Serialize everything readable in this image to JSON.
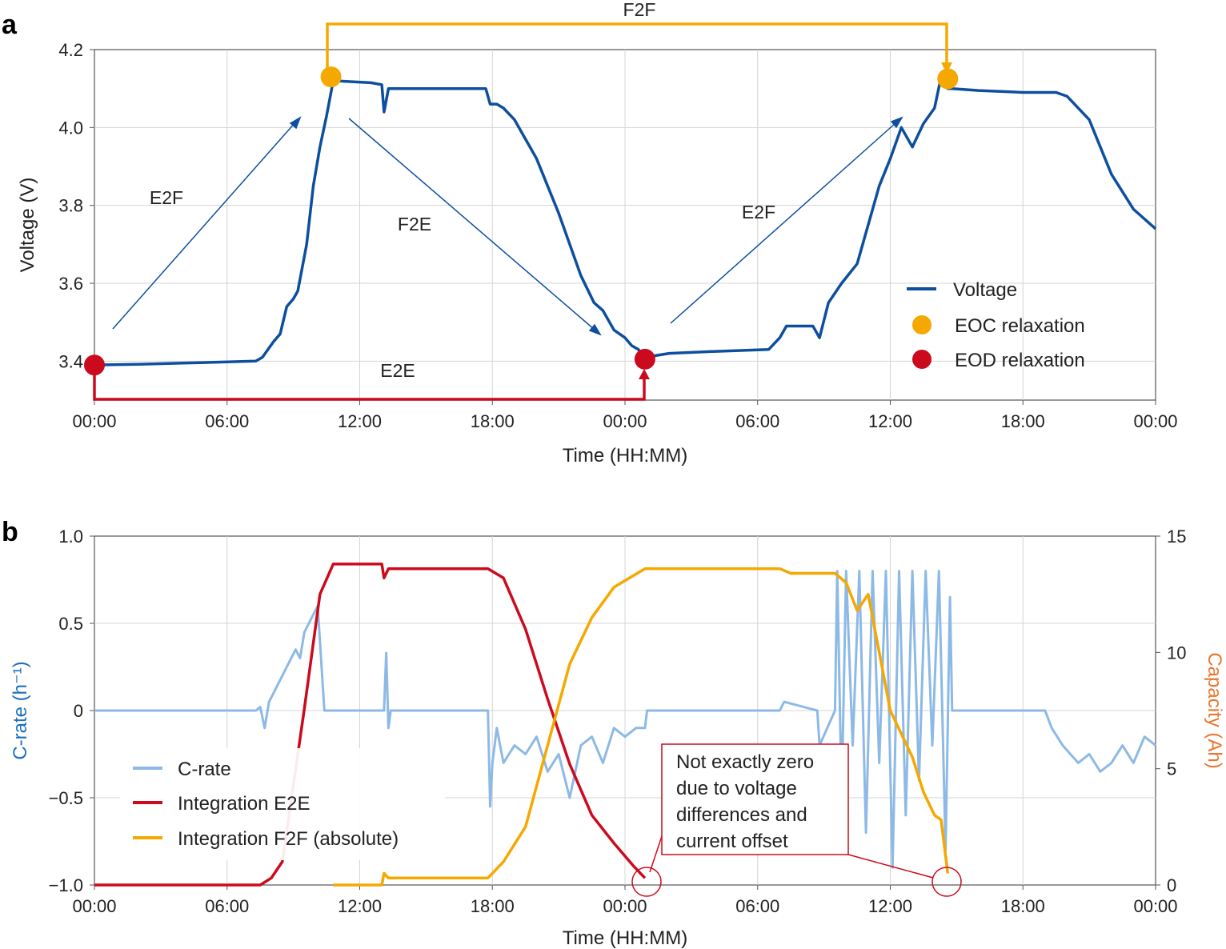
{
  "chart_data": [
    {
      "panel": "a",
      "type": "line",
      "xlabel": "Time (HH:MM)",
      "ylabel": "Voltage (V)",
      "x_ticks": [
        "00:00",
        "06:00",
        "12:00",
        "18:00",
        "00:00",
        "06:00",
        "12:00",
        "18:00",
        "00:00"
      ],
      "xlim_hours": [
        0,
        48
      ],
      "ylim": [
        3.3,
        4.2
      ],
      "y_ticks": [
        "3.4",
        "3.6",
        "3.8",
        "4.0",
        "4.2"
      ],
      "grid": true,
      "legend_position": "bottom-right",
      "series": [
        {
          "name": "Voltage",
          "color": "#0d4f9e",
          "x": [
            0,
            2,
            4,
            7.3,
            7.6,
            8.1,
            8.4,
            8.7,
            9.0,
            9.2,
            9.6,
            9.9,
            10.2,
            10.5,
            10.8,
            12.5,
            13.0,
            13.1,
            13.3,
            15.0,
            17.7,
            17.9,
            18.2,
            18.5,
            19.0,
            20.0,
            21.0,
            22.0,
            22.6,
            23.0,
            23.5,
            24.0,
            24.3,
            24.6,
            24.9,
            26.0,
            28.0,
            30.5,
            31.0,
            31.3,
            32.5,
            32.8,
            33.2,
            33.8,
            34.5,
            35.0,
            35.5,
            36.0,
            36.5,
            37.0,
            37.5,
            38.0,
            38.3,
            38.6,
            38.8,
            40.0,
            42.0,
            43.5,
            44.0,
            45.0,
            46.0,
            47.0,
            48.0
          ],
          "y": [
            3.39,
            3.392,
            3.395,
            3.4,
            3.41,
            3.45,
            3.47,
            3.54,
            3.56,
            3.58,
            3.7,
            3.85,
            3.95,
            4.03,
            4.12,
            4.115,
            4.11,
            4.04,
            4.1,
            4.1,
            4.1,
            4.06,
            4.06,
            4.05,
            4.02,
            3.92,
            3.78,
            3.62,
            3.55,
            3.53,
            3.48,
            3.46,
            3.44,
            3.43,
            3.41,
            3.42,
            3.425,
            3.43,
            3.46,
            3.49,
            3.49,
            3.46,
            3.55,
            3.6,
            3.65,
            3.75,
            3.85,
            3.92,
            4.0,
            3.95,
            4.01,
            4.05,
            4.13,
            4.1,
            4.1,
            4.095,
            4.09,
            4.09,
            4.08,
            4.02,
            3.88,
            3.79,
            3.74
          ]
        }
      ],
      "markers": [
        {
          "name": "EOC relaxation",
          "color": "#f5a800",
          "points": [
            [
              10.7,
              4.13
            ],
            [
              38.6,
              4.125
            ]
          ]
        },
        {
          "name": "EOD relaxation",
          "color": "#cc0a1e",
          "points": [
            [
              0,
              3.39
            ],
            [
              24.9,
              3.405
            ]
          ]
        }
      ],
      "annotations": {
        "e2f_1": "E2F",
        "f2e": "F2E",
        "e2f_2": "E2F",
        "e2e": "E2E",
        "f2f": "F2F"
      }
    },
    {
      "panel": "b",
      "type": "line",
      "xlabel": "Time (HH:MM)",
      "ylabel": "C-rate (h⁻¹)",
      "ylabel_right": "Capacity (Ah)",
      "x_ticks": [
        "00:00",
        "06:00",
        "12:00",
        "18:00",
        "00:00",
        "06:00",
        "12:00",
        "18:00",
        "00:00"
      ],
      "xlim_hours": [
        0,
        48
      ],
      "ylim": [
        -1.0,
        1.0
      ],
      "y_ticks": [
        "−1.0",
        "−0.5",
        "0",
        "0.5",
        "1.0"
      ],
      "ylim_right": [
        0,
        15
      ],
      "y_ticks_right": [
        "0",
        "5",
        "10",
        "15"
      ],
      "grid": true,
      "legend_position": "bottom-left",
      "series": [
        {
          "name": "C-rate",
          "axis": "left",
          "color": "#8db9e6",
          "x": [
            0,
            7.3,
            7.5,
            7.7,
            7.9,
            8.1,
            8.3,
            8.5,
            8.7,
            8.9,
            9.1,
            9.3,
            9.5,
            9.7,
            9.9,
            10.1,
            10.4,
            13.1,
            13.2,
            13.3,
            13.4,
            17.8,
            17.9,
            18.0,
            18.2,
            18.5,
            19.0,
            19.5,
            20.0,
            20.5,
            21.0,
            21.5,
            22.0,
            22.5,
            23.0,
            23.5,
            24.0,
            24.5,
            24.9,
            25.0,
            31.0,
            31.2,
            32.7,
            32.8,
            33.5,
            33.6,
            33.8,
            34.0,
            34.3,
            34.6,
            34.9,
            35.2,
            35.5,
            35.8,
            36.1,
            36.4,
            36.7,
            37.0,
            37.3,
            37.6,
            37.9,
            38.2,
            38.5,
            38.7,
            38.8,
            43.0,
            43.3,
            43.8,
            44.5,
            45.0,
            45.5,
            46.0,
            46.5,
            47.0,
            47.5,
            48.0
          ],
          "y": [
            0,
            0,
            0.02,
            -0.1,
            0.05,
            0.1,
            0.15,
            0.2,
            0.25,
            0.3,
            0.35,
            0.3,
            0.45,
            0.5,
            0.55,
            0.6,
            0,
            0,
            0.33,
            -0.1,
            0,
            0,
            -0.55,
            -0.3,
            -0.1,
            -0.3,
            -0.2,
            -0.25,
            -0.15,
            -0.35,
            -0.25,
            -0.5,
            -0.2,
            -0.15,
            -0.3,
            -0.1,
            -0.15,
            -0.1,
            -0.1,
            0,
            0,
            0.05,
            0,
            -0.2,
            0,
            0.8,
            -0.5,
            0.8,
            -0.2,
            0.8,
            -0.7,
            0.8,
            -0.3,
            0.8,
            -0.9,
            0.8,
            -0.6,
            0.8,
            -0.4,
            0.8,
            -0.2,
            0.8,
            -0.8,
            0.65,
            0,
            0,
            -0.1,
            -0.2,
            -0.3,
            -0.25,
            -0.35,
            -0.3,
            -0.2,
            -0.3,
            -0.15,
            -0.2
          ]
        },
        {
          "name": "Integration E2E",
          "axis": "right",
          "color": "#cc0a1e",
          "x": [
            0,
            7.5,
            8.0,
            8.5,
            9.5,
            10.2,
            10.8,
            13.0,
            13.1,
            13.3,
            17.8,
            18.5,
            19.5,
            20.5,
            21.5,
            22.5,
            23.5,
            24.4,
            24.9
          ],
          "y": [
            0,
            0,
            0.3,
            1.0,
            7.6,
            12.5,
            13.8,
            13.8,
            13.2,
            13.6,
            13.6,
            13.2,
            11.0,
            8.0,
            5.2,
            3.0,
            1.8,
            0.8,
            0.3
          ]
        },
        {
          "name": "Integration F2F (absolute)",
          "axis": "right",
          "color": "#f5a800",
          "x": [
            10.8,
            13.0,
            13.1,
            13.3,
            17.8,
            18.5,
            19.5,
            20.5,
            21.5,
            22.5,
            23.5,
            24.9,
            31.0,
            31.5,
            33.5,
            34.0,
            34.5,
            35.0,
            35.5,
            36.0,
            36.5,
            37.0,
            37.5,
            38.0,
            38.3,
            38.6
          ],
          "y": [
            0,
            0,
            0.5,
            0.3,
            0.3,
            1.0,
            2.5,
            6.0,
            9.5,
            11.5,
            12.8,
            13.6,
            13.6,
            13.4,
            13.4,
            13.0,
            11.8,
            12.5,
            10.0,
            7.5,
            6.5,
            5.5,
            4.0,
            3.0,
            2.8,
            0.5
          ]
        }
      ],
      "callout": "Not exactly zero due to voltage differences and current offset"
    }
  ]
}
